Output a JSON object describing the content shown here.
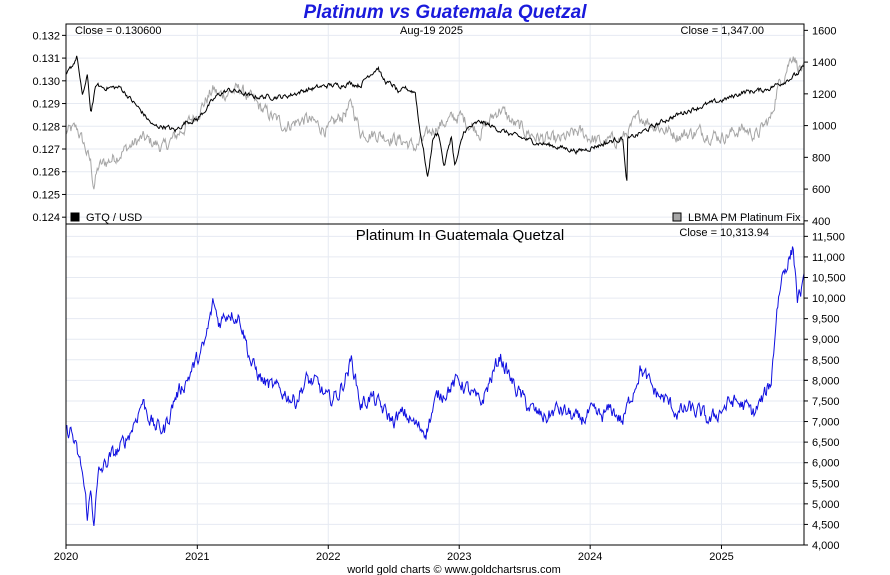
{
  "title": "Platinum vs Guatemala Quetzal",
  "footer": "world gold charts © www.goldchartsrus.com",
  "colors": {
    "gtq_line": "#000000",
    "platinum_line": "#a6a6a6",
    "bottom_line": "#1010e0",
    "grid": "#e6eaf2",
    "title": "#1a1adc"
  },
  "chart_data": [
    {
      "type": "line",
      "panel": "top",
      "header_left": "Close = 0.130600",
      "header_center": "Aug-19  2025",
      "header_right": "Close = 1,347.00",
      "legend_left": "GTQ / USD",
      "legend_right": "LBMA PM Platinum Fix",
      "legend_placement": "bottom-left / bottom-right",
      "x_tick_labels": [
        "2020",
        "2021",
        "2022",
        "2023",
        "2024",
        "2025"
      ],
      "xlim": [
        "2020-01-01",
        "2025-08-19"
      ],
      "y_left": {
        "ylim": [
          0.1237,
          0.1325
        ],
        "ticks": [
          "0.124",
          "0.125",
          "0.126",
          "0.127",
          "0.128",
          "0.129",
          "0.130",
          "0.131",
          "0.132"
        ]
      },
      "y_right": {
        "ylim": [
          380,
          1640
        ],
        "ticks": [
          "400",
          "600",
          "800",
          "1000",
          "1200",
          "1400",
          "1600"
        ]
      },
      "grid": true,
      "series": [
        {
          "name": "GTQ / USD",
          "axis": "left",
          "color": "#000000",
          "x": [
            "2020-01-01",
            "2020-01-20",
            "2020-02-01",
            "2020-02-15",
            "2020-03-01",
            "2020-03-10",
            "2020-03-25",
            "2020-04-15",
            "2020-06-01",
            "2020-08-01",
            "2020-09-01",
            "2020-10-01",
            "2020-11-01",
            "2020-12-01",
            "2021-01-01",
            "2021-02-01",
            "2021-03-01",
            "2021-04-01",
            "2021-05-01",
            "2021-06-01",
            "2021-07-01",
            "2021-09-01",
            "2021-11-01",
            "2022-01-01",
            "2022-02-01",
            "2022-03-01",
            "2022-04-01",
            "2022-04-20",
            "2022-05-20",
            "2022-06-01",
            "2022-06-15",
            "2022-07-01",
            "2022-07-20",
            "2022-08-01",
            "2022-08-15",
            "2022-09-01",
            "2022-09-10",
            "2022-09-25",
            "2022-10-05",
            "2022-10-20",
            "2022-11-05",
            "2022-11-20",
            "2022-12-10",
            "2022-12-20",
            "2023-01-15",
            "2023-03-01",
            "2023-05-01",
            "2023-06-01",
            "2023-08-01",
            "2023-10-01",
            "2023-12-01",
            "2024-02-01",
            "2024-04-01",
            "2024-04-10",
            "2024-04-12",
            "2024-04-14",
            "2024-06-01",
            "2024-08-01",
            "2024-10-01",
            "2024-12-01",
            "2025-01-15",
            "2025-03-01",
            "2025-05-01",
            "2025-06-15",
            "2025-08-01",
            "2025-08-19"
          ],
          "values": [
            0.1302,
            0.1307,
            0.1311,
            0.1293,
            0.1302,
            0.1286,
            0.1298,
            0.1297,
            0.1297,
            0.1286,
            0.128,
            0.128,
            0.1278,
            0.1282,
            0.1283,
            0.1289,
            0.1294,
            0.1296,
            0.1295,
            0.1293,
            0.1293,
            0.1293,
            0.1296,
            0.1298,
            0.1298,
            0.1299,
            0.1298,
            0.1302,
            0.1306,
            0.1301,
            0.1299,
            0.1298,
            0.1294,
            0.1297,
            0.1296,
            0.1295,
            0.1282,
            0.1268,
            0.1257,
            0.1275,
            0.1277,
            0.1262,
            0.1276,
            0.1262,
            0.1278,
            0.1282,
            0.1278,
            0.1276,
            0.1273,
            0.1271,
            0.1269,
            0.1272,
            0.1275,
            0.1257,
            0.1253,
            0.1274,
            0.1278,
            0.1283,
            0.1287,
            0.129,
            0.1292,
            0.1295,
            0.1296,
            0.1299,
            0.1303,
            0.1306
          ]
        },
        {
          "name": "LBMA PM Platinum Fix",
          "axis": "right",
          "color": "#a6a6a6",
          "x": [
            "2020-01-01",
            "2020-02-01",
            "2020-02-20",
            "2020-03-10",
            "2020-03-18",
            "2020-04-01",
            "2020-05-01",
            "2020-06-01",
            "2020-08-01",
            "2020-10-01",
            "2020-12-01",
            "2021-01-01",
            "2021-02-15",
            "2021-03-01",
            "2021-05-01",
            "2021-07-01",
            "2021-09-01",
            "2021-11-01",
            "2022-01-01",
            "2022-03-08",
            "2022-04-01",
            "2022-06-01",
            "2022-08-01",
            "2022-09-01",
            "2022-11-01",
            "2023-01-01",
            "2023-03-01",
            "2023-04-25",
            "2023-06-01",
            "2023-08-01",
            "2023-10-01",
            "2023-12-01",
            "2024-02-01",
            "2024-04-01",
            "2024-05-20",
            "2024-07-01",
            "2024-09-01",
            "2024-11-01",
            "2025-01-01",
            "2025-03-01",
            "2025-04-10",
            "2025-05-01",
            "2025-05-20",
            "2025-06-05",
            "2025-06-25",
            "2025-07-20",
            "2025-08-01",
            "2025-08-19"
          ],
          "values": [
            960,
            980,
            880,
            760,
            620,
            740,
            780,
            830,
            920,
            860,
            1000,
            1080,
            1230,
            1190,
            1230,
            1100,
            1000,
            1040,
            970,
            1130,
            960,
            940,
            900,
            860,
            1000,
            1060,
            960,
            1110,
            1010,
            930,
            900,
            960,
            890,
            920,
            1060,
            1000,
            940,
            960,
            930,
            980,
            940,
            1000,
            1050,
            1230,
            1330,
            1460,
            1380,
            1347
          ]
        }
      ]
    },
    {
      "type": "line",
      "panel": "bottom",
      "title": "Platinum In Guatemala Quetzal",
      "header_right": "Close = 10,313.94",
      "x_tick_labels": [
        "2020",
        "2021",
        "2022",
        "2023",
        "2024",
        "2025"
      ],
      "xlim": [
        "2020-01-01",
        "2025-08-19"
      ],
      "ylim": [
        4000,
        11800
      ],
      "y_ticks": [
        "4,000",
        "4,500",
        "5,000",
        "5,500",
        "6,000",
        "6,500",
        "7,000",
        "7,500",
        "8,000",
        "8,500",
        "9,000",
        "9,500",
        "10,000",
        "10,500",
        "11,000",
        "11,500"
      ],
      "grid": true,
      "series": [
        {
          "color": "#1010e0",
          "x": [
            "2020-01-01",
            "2020-01-15",
            "2020-02-01",
            "2020-02-15",
            "2020-03-01",
            "2020-03-10",
            "2020-03-18",
            "2020-04-01",
            "2020-05-01",
            "2020-06-01",
            "2020-07-01",
            "2020-08-01",
            "2020-09-01",
            "2020-10-01",
            "2020-11-01",
            "2020-12-01",
            "2021-01-01",
            "2021-01-20",
            "2021-02-15",
            "2021-03-01",
            "2021-04-01",
            "2021-05-01",
            "2021-06-01",
            "2021-07-01",
            "2021-08-01",
            "2021-09-01",
            "2021-10-01",
            "2021-11-01",
            "2021-12-01",
            "2022-01-01",
            "2022-02-01",
            "2022-03-08",
            "2022-04-01",
            "2022-05-01",
            "2022-06-01",
            "2022-07-01",
            "2022-08-01",
            "2022-09-01",
            "2022-10-01",
            "2022-11-01",
            "2022-12-01",
            "2023-01-01",
            "2023-02-01",
            "2023-03-01",
            "2023-04-25",
            "2023-05-15",
            "2023-06-01",
            "2023-07-01",
            "2023-08-01",
            "2023-09-01",
            "2023-10-01",
            "2023-11-01",
            "2023-12-01",
            "2024-01-01",
            "2024-02-01",
            "2024-03-01",
            "2024-04-01",
            "2024-05-20",
            "2024-06-15",
            "2024-07-01",
            "2024-08-01",
            "2024-09-01",
            "2024-10-01",
            "2024-11-01",
            "2024-12-01",
            "2025-01-01",
            "2025-02-01",
            "2025-03-01",
            "2025-04-01",
            "2025-05-01",
            "2025-05-20",
            "2025-06-05",
            "2025-06-20",
            "2025-07-10",
            "2025-07-20",
            "2025-08-01",
            "2025-08-19"
          ],
          "values": [
            6700,
            6800,
            6200,
            5800,
            4700,
            5300,
            4600,
            5700,
            6100,
            6350,
            6800,
            7500,
            6900,
            6800,
            7600,
            8000,
            8500,
            8800,
            9900,
            9400,
            9700,
            9500,
            8400,
            8000,
            7800,
            7700,
            7500,
            8000,
            7900,
            7500,
            7700,
            8500,
            7400,
            7600,
            7300,
            7000,
            7200,
            6900,
            6800,
            7600,
            7800,
            8000,
            7700,
            7400,
            8600,
            8200,
            7900,
            7500,
            7200,
            7100,
            7300,
            7200,
            7000,
            7200,
            7100,
            7300,
            7000,
            8300,
            7900,
            7700,
            7500,
            7200,
            7300,
            7200,
            7000,
            7300,
            7500,
            7400,
            7200,
            7600,
            8000,
            9800,
            10600,
            11000,
            11200,
            10000,
            10314
          ]
        }
      ]
    }
  ]
}
